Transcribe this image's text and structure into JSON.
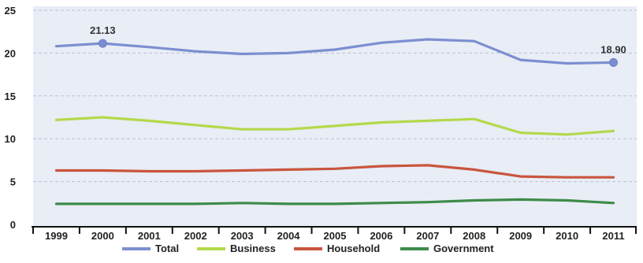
{
  "chart_data": {
    "type": "line",
    "title": "",
    "xlabel": "",
    "ylabel": "",
    "categories": [
      "1999",
      "2000",
      "2001",
      "2002",
      "2003",
      "2004",
      "2005",
      "2006",
      "2007",
      "2008",
      "2009",
      "2010",
      "2011"
    ],
    "ylim": [
      0,
      25
    ],
    "yticks": [
      0,
      5,
      10,
      15,
      20,
      25
    ],
    "grid": true,
    "legend_position": "bottom",
    "series": [
      {
        "name": "Total",
        "color": "#7b8fd0",
        "values": [
          20.8,
          21.13,
          20.7,
          20.2,
          19.9,
          20.0,
          20.4,
          21.2,
          21.6,
          21.4,
          19.2,
          18.8,
          18.9
        ]
      },
      {
        "name": "Business",
        "color": "#b3d94a",
        "values": [
          12.2,
          12.5,
          12.1,
          11.6,
          11.1,
          11.1,
          11.5,
          11.9,
          12.1,
          12.3,
          10.7,
          10.5,
          10.9
        ]
      },
      {
        "name": "Household",
        "color": "#c9553d",
        "values": [
          6.3,
          6.3,
          6.2,
          6.2,
          6.3,
          6.4,
          6.5,
          6.8,
          6.9,
          6.4,
          5.6,
          5.5,
          5.5
        ]
      },
      {
        "name": "Government",
        "color": "#3d8c4a",
        "values": [
          2.4,
          2.4,
          2.4,
          2.4,
          2.5,
          2.4,
          2.4,
          2.5,
          2.6,
          2.8,
          2.9,
          2.8,
          2.5
        ]
      }
    ],
    "annotations": [
      {
        "series": "Total",
        "category": "2000",
        "label": "21.13"
      },
      {
        "series": "Total",
        "category": "2011",
        "label": "18.90"
      }
    ]
  }
}
